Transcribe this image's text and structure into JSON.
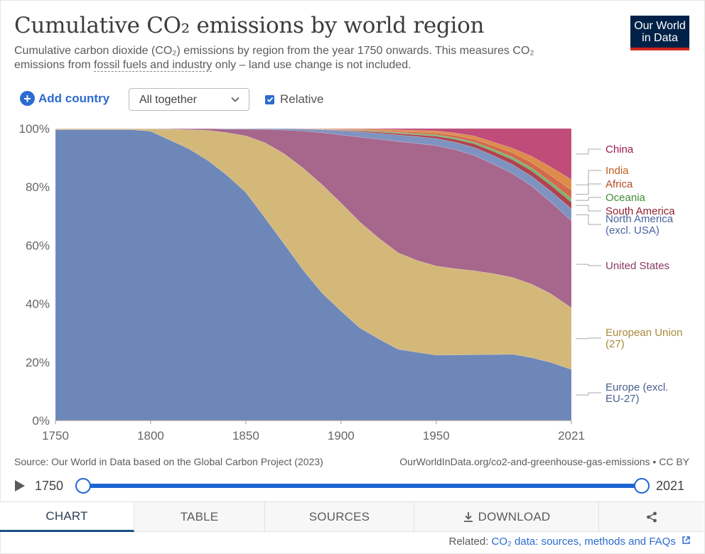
{
  "header": {
    "title": "Cumulative CO₂ emissions by world region",
    "subtitle_part1": "Cumulative carbon dioxide (CO₂) emissions by region from the year 1750 onwards. This measures CO₂ emissions from ",
    "subtitle_link": "fossil fuels and industry",
    "subtitle_part2": " only – land use change is not included.",
    "logo_line1": "Our World",
    "logo_line2": "in Data"
  },
  "controls": {
    "add_country": "Add country",
    "stacking_select": "All together",
    "relative_label": "Relative",
    "relative_checked": true
  },
  "chart_data": {
    "type": "area",
    "stacked": true,
    "relative": true,
    "x": [
      1750,
      1790,
      1800,
      1810,
      1820,
      1830,
      1840,
      1850,
      1860,
      1870,
      1880,
      1890,
      1900,
      1910,
      1920,
      1930,
      1940,
      1950,
      1960,
      1970,
      1980,
      1990,
      2000,
      2010,
      2021
    ],
    "yticks": [
      "0%",
      "20%",
      "40%",
      "60%",
      "80%",
      "100%"
    ],
    "xticks": [
      "1750",
      "1800",
      "1850",
      "1900",
      "1950",
      "2021"
    ],
    "ylim": [
      0,
      100
    ],
    "series": [
      {
        "name": "Europe (excl. EU-27)",
        "color": "#6d87b8",
        "label_color": "#4a5f8e",
        "values": [
          99.5,
          99.5,
          99,
          96,
          93,
          89,
          84,
          78,
          69,
          60,
          51,
          43,
          37,
          31,
          27.5,
          24,
          23,
          22,
          22,
          22,
          22,
          22,
          20.5,
          19,
          17
        ]
      },
      {
        "name": "European Union (27)",
        "color": "#d3b87a",
        "label_color": "#a88a3c",
        "values": [
          0.3,
          0.3,
          0.8,
          3.7,
          6.5,
          10.3,
          14.5,
          19.3,
          25.5,
          30.5,
          34.5,
          36.5,
          36.5,
          35.5,
          34,
          32.5,
          31,
          30,
          29,
          28,
          27,
          25.5,
          24,
          22.5,
          20.5
        ]
      },
      {
        "name": "United States",
        "color": "#a7668c",
        "label_color": "#883b66",
        "values": [
          0.1,
          0.1,
          0.1,
          0.2,
          0.4,
          0.6,
          1.2,
          2.3,
          4.5,
          8,
          12.5,
          17.5,
          23,
          28.5,
          33.5,
          37.5,
          39.5,
          40.5,
          40,
          38.5,
          36.5,
          34.5,
          32,
          30,
          29
        ]
      },
      {
        "name": "North America (excl. USA)",
        "color": "#7f93c0",
        "label_color": "#4a63a0",
        "values": [
          0,
          0,
          0,
          0,
          0,
          0,
          0.2,
          0.2,
          0.3,
          0.5,
          0.7,
          1,
          1.4,
          1.8,
          2,
          2.2,
          2.3,
          2.4,
          2.5,
          2.7,
          2.9,
          3,
          3.2,
          3.5,
          4
        ]
      },
      {
        "name": "South America",
        "color": "#b0434f",
        "label_color": "#8e2130",
        "values": [
          0,
          0,
          0,
          0,
          0,
          0,
          0,
          0,
          0,
          0,
          0.05,
          0.1,
          0.2,
          0.3,
          0.4,
          0.5,
          0.6,
          0.8,
          1,
          1.2,
          1.4,
          1.6,
          1.8,
          2,
          2.2
        ]
      },
      {
        "name": "Oceania",
        "color": "#75b46e",
        "label_color": "#3d8e34",
        "values": [
          0,
          0,
          0,
          0,
          0,
          0,
          0,
          0,
          0,
          0,
          0.05,
          0.1,
          0.15,
          0.2,
          0.3,
          0.35,
          0.4,
          0.45,
          0.5,
          0.6,
          0.7,
          0.8,
          0.9,
          1,
          1.2
        ]
      },
      {
        "name": "Africa",
        "color": "#d26a4b",
        "label_color": "#b64a26",
        "values": [
          0,
          0,
          0,
          0,
          0,
          0,
          0,
          0,
          0,
          0,
          0,
          0.05,
          0.1,
          0.2,
          0.3,
          0.4,
          0.5,
          0.6,
          0.8,
          1,
          1.2,
          1.5,
          1.8,
          2.2,
          2.8
        ]
      },
      {
        "name": "India",
        "color": "#dd8c4a",
        "label_color": "#c25d1d",
        "values": [
          0,
          0,
          0,
          0,
          0,
          0,
          0,
          0,
          0,
          0,
          0.05,
          0.1,
          0.2,
          0.3,
          0.4,
          0.5,
          0.6,
          0.7,
          0.8,
          1,
          1.2,
          1.5,
          2,
          2.7,
          3.5
        ]
      },
      {
        "name": "China",
        "color": "#c04c7a",
        "label_color": "#9a1a4e",
        "values": [
          0,
          0,
          0,
          0,
          0,
          0,
          0,
          0,
          0,
          0,
          0,
          0.05,
          0.1,
          0.1,
          0.2,
          0.4,
          0.6,
          0.8,
          1.5,
          2.5,
          4.5,
          6.5,
          9,
          12.5,
          17
        ]
      }
    ]
  },
  "footer": {
    "source": "Source: Our World in Data based on the Global Carbon Project (2023)",
    "url": "OurWorldInData.org/co2-and-greenhouse-gas-emissions • CC BY",
    "timeline_start": "1750",
    "timeline_end": "2021",
    "tabs": [
      "CHART",
      "TABLE",
      "SOURCES",
      "DOWNLOAD"
    ],
    "related_label": "Related:",
    "related_link": "CO₂ data: sources, methods and FAQs"
  }
}
